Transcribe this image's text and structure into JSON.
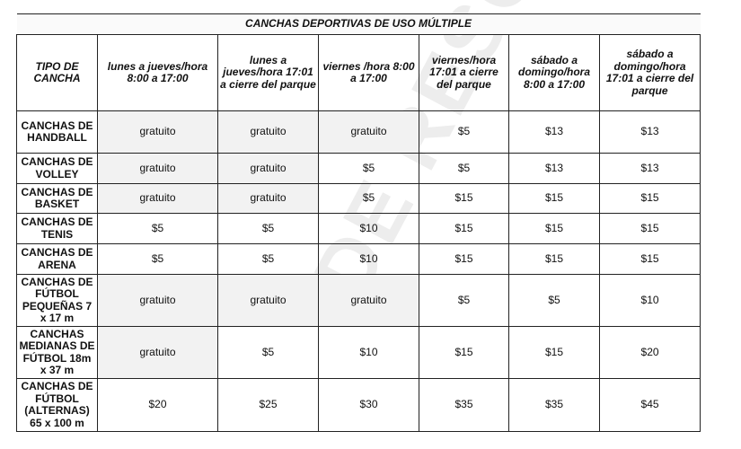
{
  "table": {
    "title": "CANCHAS DEPORTIVAS DE USO MÚLTIPLE",
    "headers": [
      "TIPO DE CANCHA",
      "lunes a jueves/hora 8:00 a 17:00",
      "lunes a jueves/hora 17:01 a cierre del parque",
      "viernes /hora 8:00 a 17:00",
      "viernes/hora 17:01 a cierre del parque",
      "sábado a domingo/hora 8:00 a 17:00",
      "sábado a domingo/hora 17:01 a cierre del parque"
    ],
    "rows": [
      {
        "name": "CANCHAS DE HANDBALL",
        "values": [
          "gratuito",
          "gratuito",
          "gratuito",
          "$5",
          "$13",
          "$13"
        ]
      },
      {
        "name": "CANCHAS DE VOLLEY",
        "values": [
          "gratuito",
          "gratuito",
          "$5",
          "$5",
          "$13",
          "$13"
        ]
      },
      {
        "name": "CANCHAS DE BASKET",
        "values": [
          "gratuito",
          "gratuito",
          "$5",
          "$15",
          "$15",
          "$15"
        ]
      },
      {
        "name": "CANCHAS DE TENIS",
        "values": [
          "$5",
          "$5",
          "$10",
          "$15",
          "$15",
          "$15"
        ]
      },
      {
        "name": "CANCHAS DE ARENA",
        "values": [
          "$5",
          "$5",
          "$10",
          "$15",
          "$15",
          "$15"
        ]
      },
      {
        "name": "CANCHAS DE FÚTBOL PEQUEÑAS 7 x 17 m",
        "values": [
          "gratuito",
          "gratuito",
          "gratuito",
          "$5",
          "$5",
          "$10"
        ]
      },
      {
        "name": "CANCHAS MEDIANAS DE FÚTBOL 18m x 37 m",
        "values": [
          "gratuito",
          "$5",
          "$10",
          "$15",
          "$15",
          "$20"
        ]
      },
      {
        "name": "CANCHAS DE FÚTBOL (ALTERNAS) 65 x 100 m",
        "values": [
          "$20",
          "$25",
          "$30",
          "$35",
          "$35",
          "$45"
        ]
      }
    ]
  },
  "watermark": "DE RESOLUCIÓN"
}
